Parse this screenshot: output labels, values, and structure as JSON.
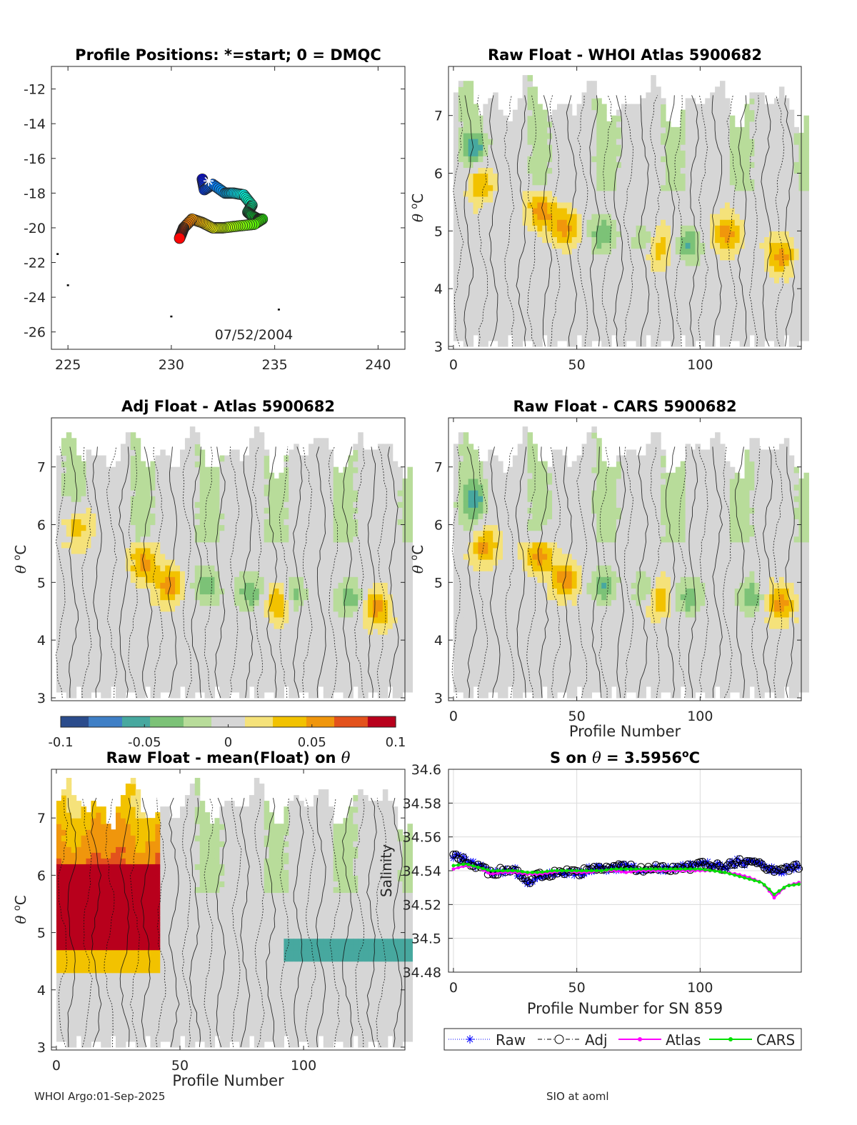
{
  "chart_data": [
    {
      "type": "scatter",
      "title": "Profile Positions: *=start; 0 = DMQC",
      "xlabel": "",
      "ylabel": "",
      "xlim": [
        224.2,
        241.3
      ],
      "ylim": [
        -27.0,
        -10.7
      ],
      "xticks": [
        225,
        230,
        235,
        240
      ],
      "yticks": [
        -12,
        -14,
        -16,
        -18,
        -20,
        -22,
        -24,
        -26
      ],
      "date_label": "07/52/2004",
      "start_marker": [
        231.8,
        -17.3
      ],
      "track": [
        [
          231.5,
          -17.2
        ],
        [
          231.6,
          -17.8
        ],
        [
          232.0,
          -17.5
        ],
        [
          232.6,
          -18.0
        ],
        [
          233.0,
          -18.0
        ],
        [
          233.5,
          -18.1
        ],
        [
          233.9,
          -18.7
        ],
        [
          233.7,
          -19.1
        ],
        [
          233.9,
          -19.3
        ],
        [
          234.2,
          -19.5
        ],
        [
          234.4,
          -19.5
        ],
        [
          234.0,
          -19.8
        ],
        [
          233.2,
          -19.9
        ],
        [
          232.5,
          -20.0
        ],
        [
          232.0,
          -20.0
        ],
        [
          231.5,
          -19.7
        ],
        [
          231.0,
          -19.5
        ],
        [
          230.6,
          -20.0
        ],
        [
          230.5,
          -20.3
        ],
        [
          230.4,
          -20.6
        ]
      ],
      "extra_points": [
        [
          224.5,
          -21.5
        ],
        [
          225.0,
          -23.3
        ],
        [
          230.0,
          -25.1
        ],
        [
          235.2,
          -24.7
        ]
      ]
    },
    {
      "type": "heatmap",
      "title": "Raw Float - WHOI Atlas  5900682",
      "xlabel": "",
      "ylabel": "θ °C",
      "xlim": [
        -2,
        141
      ],
      "ylim": [
        2.95,
        7.85
      ],
      "xticks": [
        0,
        50,
        100
      ],
      "yticks": [
        3,
        4,
        5,
        6,
        7
      ],
      "warm_spots": [
        [
          10,
          5.8
        ],
        [
          35,
          5.3
        ],
        [
          45,
          5.0
        ],
        [
          82,
          4.7
        ],
        [
          110,
          4.9
        ],
        [
          132,
          4.5
        ]
      ],
      "fresh_spots": [
        [
          8,
          6.4
        ],
        [
          60,
          4.9
        ],
        [
          78,
          4.8
        ],
        [
          95,
          4.7
        ]
      ]
    },
    {
      "type": "heatmap",
      "title": "Adj Float - Atlas  5900682",
      "xlabel": "",
      "ylabel": "θ °C",
      "xlim": [
        -2,
        141
      ],
      "ylim": [
        2.95,
        7.85
      ],
      "xticks": [],
      "yticks": [
        3,
        4,
        5,
        6,
        7
      ],
      "warm_spots": [
        [
          8,
          5.9
        ],
        [
          35,
          5.3
        ],
        [
          45,
          4.9
        ],
        [
          90,
          4.6
        ],
        [
          129,
          4.5
        ]
      ],
      "fresh_spots": [
        [
          60,
          4.9
        ],
        [
          78,
          4.8
        ],
        [
          95,
          4.7
        ],
        [
          118,
          4.7
        ]
      ]
    },
    {
      "type": "heatmap",
      "title": "Raw Float - CARS  5900682",
      "xlabel": "Profile Number",
      "ylabel": "θ °C",
      "xlim": [
        -2,
        141
      ],
      "ylim": [
        2.95,
        7.85
      ],
      "xticks": [
        0,
        50,
        100
      ],
      "yticks": [
        3,
        4,
        5,
        6,
        7
      ],
      "warm_spots": [
        [
          12,
          5.6
        ],
        [
          34,
          5.4
        ],
        [
          45,
          5.0
        ],
        [
          82,
          4.7
        ],
        [
          132,
          4.6
        ]
      ],
      "fresh_spots": [
        [
          8,
          6.4
        ],
        [
          60,
          4.9
        ],
        [
          78,
          4.8
        ],
        [
          95,
          4.7
        ],
        [
          120,
          4.7
        ]
      ]
    },
    {
      "type": "heatmap",
      "title": "Raw Float - mean(Float) on θ",
      "xlabel": "Profile Number",
      "ylabel": "θ °C",
      "xlim": [
        -2,
        141
      ],
      "ylim": [
        2.95,
        7.85
      ],
      "xticks": [
        0,
        50,
        100
      ],
      "yticks": [
        3,
        4,
        5,
        6,
        7
      ],
      "warm_block": {
        "x_end": 41,
        "theta_low": 4.65,
        "theta_high": 6.15
      },
      "fresh_band": {
        "x_start": 92,
        "theta_low": 4.4,
        "theta_high": 4.9
      }
    },
    {
      "type": "line",
      "title": "S on θ = 3.5956°C",
      "xlabel": "Profile Number for SN 859",
      "ylabel": "Salinity",
      "xlim": [
        -2,
        141
      ],
      "ylim": [
        34.48,
        34.6
      ],
      "xticks": [
        0,
        50,
        100
      ],
      "yticks": [
        34.48,
        34.5,
        34.52,
        34.54,
        34.56,
        34.58,
        34.6
      ],
      "ytick_labels": [
        "34.48",
        "34.5",
        "34.52",
        "34.54",
        "34.56",
        "34.58",
        "34.6"
      ],
      "series": [
        {
          "name": "Raw",
          "color": "#0000ff",
          "x": [
            0,
            5,
            10,
            15,
            20,
            25,
            30,
            35,
            40,
            45,
            50,
            55,
            60,
            65,
            70,
            75,
            80,
            85,
            90,
            95,
            100,
            105,
            110,
            115,
            120,
            125,
            130,
            135,
            140
          ],
          "values": [
            34.549,
            34.546,
            34.543,
            34.539,
            34.54,
            34.54,
            34.533,
            34.538,
            34.538,
            34.54,
            34.538,
            34.541,
            34.541,
            34.542,
            34.542,
            34.541,
            34.542,
            34.541,
            34.542,
            34.542,
            34.544,
            34.543,
            34.542,
            34.545,
            34.545,
            34.543,
            34.54,
            34.541,
            34.543
          ]
        },
        {
          "name": "Adj",
          "color": "#000000",
          "x": [
            0,
            5,
            10,
            15,
            20,
            25,
            30,
            35,
            40,
            45,
            50,
            55,
            60,
            65,
            70,
            75,
            80,
            85,
            90,
            95,
            100,
            105,
            110,
            115,
            120,
            125,
            130,
            135,
            140
          ],
          "values": [
            34.549,
            34.546,
            34.543,
            34.539,
            34.54,
            34.54,
            34.533,
            34.538,
            34.538,
            34.54,
            34.538,
            34.541,
            34.541,
            34.542,
            34.542,
            34.541,
            34.542,
            34.541,
            34.542,
            34.542,
            34.544,
            34.543,
            34.542,
            34.545,
            34.545,
            34.543,
            34.54,
            34.541,
            34.543
          ]
        },
        {
          "name": "Atlas",
          "color": "#ff00ff",
          "x": [
            0,
            5,
            10,
            15,
            20,
            25,
            30,
            35,
            40,
            45,
            50,
            55,
            60,
            65,
            70,
            75,
            80,
            85,
            90,
            95,
            100,
            105,
            110,
            115,
            120,
            125,
            128,
            130,
            132,
            135,
            140
          ],
          "values": [
            34.541,
            34.543,
            34.542,
            34.538,
            34.539,
            34.539,
            34.538,
            34.538,
            34.539,
            34.54,
            34.539,
            34.539,
            34.54,
            34.54,
            34.539,
            34.54,
            34.54,
            34.54,
            34.54,
            34.54,
            34.54,
            34.54,
            34.539,
            34.538,
            34.536,
            34.533,
            34.528,
            34.524,
            34.527,
            34.531,
            34.533
          ]
        },
        {
          "name": "CARS",
          "color": "#00e000",
          "x": [
            0,
            5,
            10,
            15,
            20,
            25,
            30,
            35,
            40,
            45,
            50,
            55,
            60,
            65,
            70,
            75,
            80,
            85,
            90,
            95,
            100,
            105,
            110,
            115,
            120,
            125,
            128,
            130,
            132,
            135,
            140
          ],
          "values": [
            34.543,
            34.544,
            34.542,
            34.54,
            34.54,
            34.54,
            34.539,
            34.539,
            34.54,
            34.54,
            34.54,
            34.54,
            34.54,
            34.541,
            34.541,
            34.541,
            34.541,
            34.541,
            34.541,
            34.541,
            34.541,
            34.54,
            34.539,
            34.537,
            34.535,
            34.533,
            34.529,
            34.526,
            34.528,
            34.531,
            34.532
          ]
        }
      ],
      "legend_position": "bottom"
    }
  ],
  "colorbar": {
    "ticks": [
      -0.1,
      -0.05,
      0,
      0.05,
      0.1
    ],
    "tick_labels": [
      "-0.1",
      "-0.05",
      "0",
      "0.05",
      "0.1"
    ],
    "colors": [
      "#2b4c8c",
      "#3f7fc6",
      "#47a89f",
      "#7cc277",
      "#b8dc9a",
      "#d6d6d6",
      "#f5e27a",
      "#f2c200",
      "#f0960c",
      "#e3521c",
      "#b8001c"
    ]
  },
  "footer": {
    "left": "WHOI Argo:01-Sep-2025",
    "right": "SIO at aoml"
  }
}
